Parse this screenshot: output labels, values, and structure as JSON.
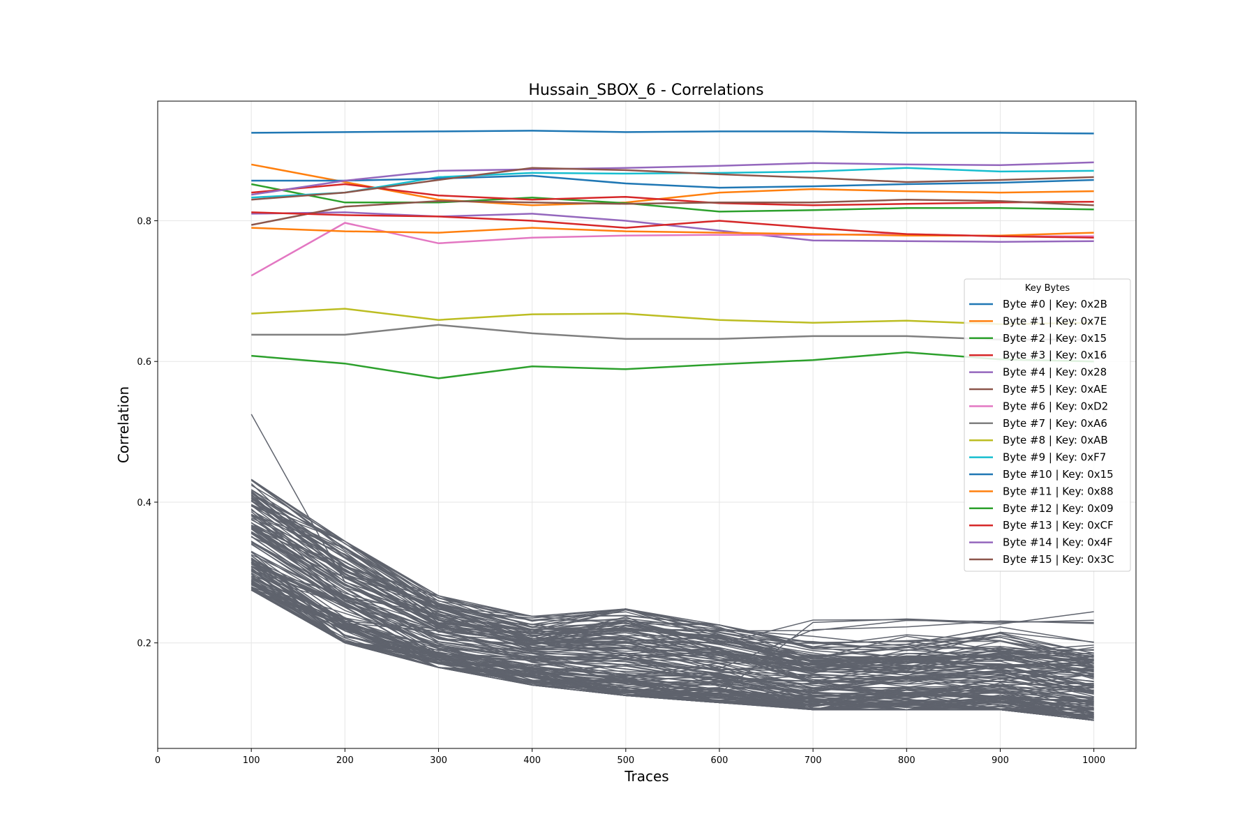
{
  "chart_data": {
    "type": "line",
    "title": "Hussain_SBOX_6 - Correlations",
    "xlabel": "Traces",
    "ylabel": "Correlation",
    "xlim": [
      0,
      1045
    ],
    "ylim": [
      0.05,
      0.97
    ],
    "xticks": [
      0,
      100,
      200,
      300,
      400,
      500,
      600,
      700,
      800,
      900,
      1000
    ],
    "yticks": [
      0.2,
      0.4,
      0.6,
      0.8
    ],
    "ytick_labels": [
      "0.2",
      "0.4",
      "0.6",
      "0.8"
    ],
    "grid": true,
    "x": [
      100,
      200,
      300,
      400,
      500,
      600,
      700,
      800,
      900,
      1000
    ],
    "legend": {
      "title": "Key Bytes",
      "placement": "center-right"
    },
    "series": [
      {
        "name": "Byte #0 | Key: 0x2B",
        "color": "#1f77b4",
        "values": [
          0.925,
          0.926,
          0.927,
          0.928,
          0.926,
          0.927,
          0.927,
          0.925,
          0.925,
          0.924
        ]
      },
      {
        "name": "Byte #1 | Key: 0x7E",
        "color": "#ff7f0e",
        "values": [
          0.88,
          0.855,
          0.83,
          0.822,
          0.826,
          0.84,
          0.845,
          0.842,
          0.84,
          0.842
        ]
      },
      {
        "name": "Byte #2 | Key: 0x15",
        "color": "#2ca02c",
        "values": [
          0.852,
          0.826,
          0.826,
          0.833,
          0.825,
          0.813,
          0.815,
          0.818,
          0.818,
          0.816
        ]
      },
      {
        "name": "Byte #3 | Key: 0x16",
        "color": "#d62728",
        "values": [
          0.84,
          0.852,
          0.836,
          0.83,
          0.834,
          0.825,
          0.822,
          0.824,
          0.826,
          0.827
        ]
      },
      {
        "name": "Byte #4 | Key: 0x28",
        "color": "#9467bd",
        "values": [
          0.81,
          0.812,
          0.806,
          0.81,
          0.8,
          0.786,
          0.772,
          0.771,
          0.77,
          0.771
        ]
      },
      {
        "name": "Byte #5 | Key: 0xAE",
        "color": "#8c564b",
        "values": [
          0.794,
          0.82,
          0.828,
          0.826,
          0.824,
          0.826,
          0.826,
          0.83,
          0.828,
          0.822
        ]
      },
      {
        "name": "Byte #6 | Key: 0xD2",
        "color": "#e377c2",
        "values": [
          0.722,
          0.797,
          0.768,
          0.776,
          0.779,
          0.78,
          0.78,
          0.781,
          0.778,
          0.778
        ]
      },
      {
        "name": "Byte #7 | Key: 0xA6",
        "color": "#7f7f7f",
        "values": [
          0.638,
          0.638,
          0.652,
          0.64,
          0.632,
          0.632,
          0.636,
          0.636,
          0.631,
          0.631
        ]
      },
      {
        "name": "Byte #8 | Key: 0xAB",
        "color": "#bcbd22",
        "values": [
          0.668,
          0.675,
          0.659,
          0.667,
          0.668,
          0.659,
          0.655,
          0.658,
          0.653,
          0.655
        ]
      },
      {
        "name": "Byte #9 | Key: 0xF7",
        "color": "#17becf",
        "values": [
          0.833,
          0.84,
          0.862,
          0.868,
          0.867,
          0.868,
          0.87,
          0.875,
          0.87,
          0.871
        ]
      },
      {
        "name": "Byte #10 | Key: 0x15",
        "color": "#1f77b4",
        "values": [
          0.857,
          0.857,
          0.86,
          0.864,
          0.853,
          0.847,
          0.849,
          0.852,
          0.854,
          0.858
        ]
      },
      {
        "name": "Byte #11 | Key: 0x88",
        "color": "#ff7f0e",
        "values": [
          0.79,
          0.785,
          0.783,
          0.79,
          0.785,
          0.783,
          0.781,
          0.779,
          0.779,
          0.783
        ]
      },
      {
        "name": "Byte #12 | Key: 0x09",
        "color": "#2ca02c",
        "values": [
          0.608,
          0.597,
          0.576,
          0.593,
          0.589,
          0.596,
          0.602,
          0.613,
          0.603,
          0.6
        ]
      },
      {
        "name": "Byte #13 | Key: 0xCF",
        "color": "#d62728",
        "values": [
          0.812,
          0.808,
          0.806,
          0.8,
          0.79,
          0.8,
          0.79,
          0.781,
          0.778,
          0.776
        ]
      },
      {
        "name": "Byte #14 | Key: 0x4F",
        "color": "#9467bd",
        "values": [
          0.837,
          0.857,
          0.871,
          0.873,
          0.875,
          0.878,
          0.882,
          0.88,
          0.879,
          0.883
        ]
      },
      {
        "name": "Byte #15 | Key: 0x3C",
        "color": "#8c564b",
        "values": [
          0.83,
          0.84,
          0.858,
          0.875,
          0.872,
          0.866,
          0.861,
          0.855,
          0.858,
          0.862
        ]
      }
    ],
    "background_series": {
      "color": "#5f636d",
      "count": 150,
      "description_values": {
        "x": [
          100,
          200,
          300,
          400,
          500,
          600,
          700,
          800,
          900,
          1000
        ],
        "typical_low": [
          0.275,
          0.2,
          0.165,
          0.14,
          0.125,
          0.115,
          0.105,
          0.105,
          0.105,
          0.09
        ],
        "typical_high": [
          0.46,
          0.37,
          0.285,
          0.255,
          0.27,
          0.245,
          0.24,
          0.245,
          0.255,
          0.245
        ],
        "outlier_start": 0.525
      }
    }
  }
}
